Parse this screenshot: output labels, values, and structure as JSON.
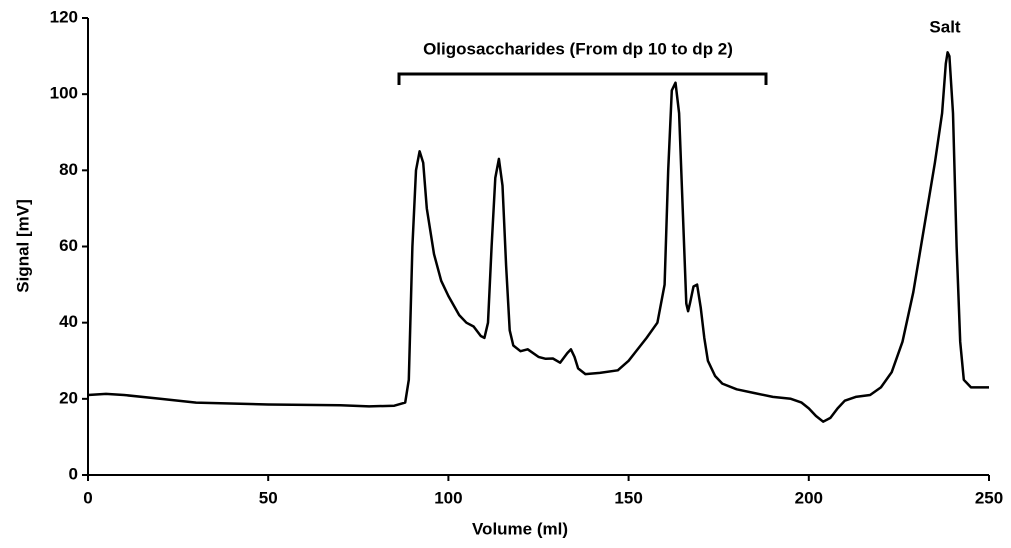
{
  "chart_data": {
    "type": "line",
    "x_label": "Volume (ml)",
    "y_label": "Signal [mV]",
    "annotations": [
      "Oligosaccharides (From dp 10 to dp 2)",
      "Salt"
    ],
    "x": [
      0,
      5,
      10,
      20,
      30,
      50,
      70,
      78,
      85,
      88,
      89,
      90,
      91,
      92,
      93,
      94,
      96,
      98,
      100,
      103,
      105,
      107,
      109,
      110,
      111,
      112,
      113,
      114,
      115,
      116,
      117,
      118,
      120,
      122,
      125,
      127,
      129,
      131,
      133,
      134,
      135,
      136,
      138,
      142,
      147,
      150,
      155,
      158,
      160,
      161,
      162,
      163,
      164,
      165,
      166,
      166.5,
      167,
      168,
      169,
      170,
      171,
      172,
      174,
      176,
      180,
      185,
      190,
      195,
      198,
      200,
      202,
      204,
      206,
      208,
      210,
      213,
      217,
      220,
      223,
      226,
      229,
      232,
      235,
      237,
      238,
      238.5,
      239,
      240,
      241,
      242,
      243,
      245,
      247,
      250
    ],
    "series": [
      {
        "color": "#000000",
        "values": [
          21,
          21.3,
          21,
          20,
          19,
          18.5,
          18.3,
          18,
          18.2,
          19,
          25,
          60,
          80,
          85,
          82,
          70,
          58,
          51,
          47,
          42,
          40,
          39,
          36.5,
          36,
          40,
          60,
          78,
          83,
          76,
          55,
          38,
          34,
          32.5,
          33,
          31,
          30.5,
          30.6,
          29.5,
          32,
          33,
          31,
          28,
          26.5,
          26.8,
          27.5,
          30,
          36,
          40,
          50,
          80,
          101,
          103,
          95,
          70,
          45,
          43,
          45,
          49.5,
          50,
          44,
          36,
          30,
          26,
          24,
          22.5,
          21.5,
          20.5,
          20,
          19,
          17.5,
          15.5,
          14,
          15,
          17.5,
          19.5,
          20.5,
          21,
          23,
          27,
          35,
          48,
          65,
          82,
          95,
          108,
          111,
          110,
          95,
          60,
          35,
          25,
          23,
          23,
          23
        ]
      }
    ],
    "xlim": [
      0,
      250
    ],
    "xticks": [
      0,
      50,
      100,
      150,
      200,
      250
    ],
    "ylim": [
      0,
      120
    ],
    "yticks": [
      0,
      20,
      40,
      60,
      80,
      100,
      120
    ]
  }
}
